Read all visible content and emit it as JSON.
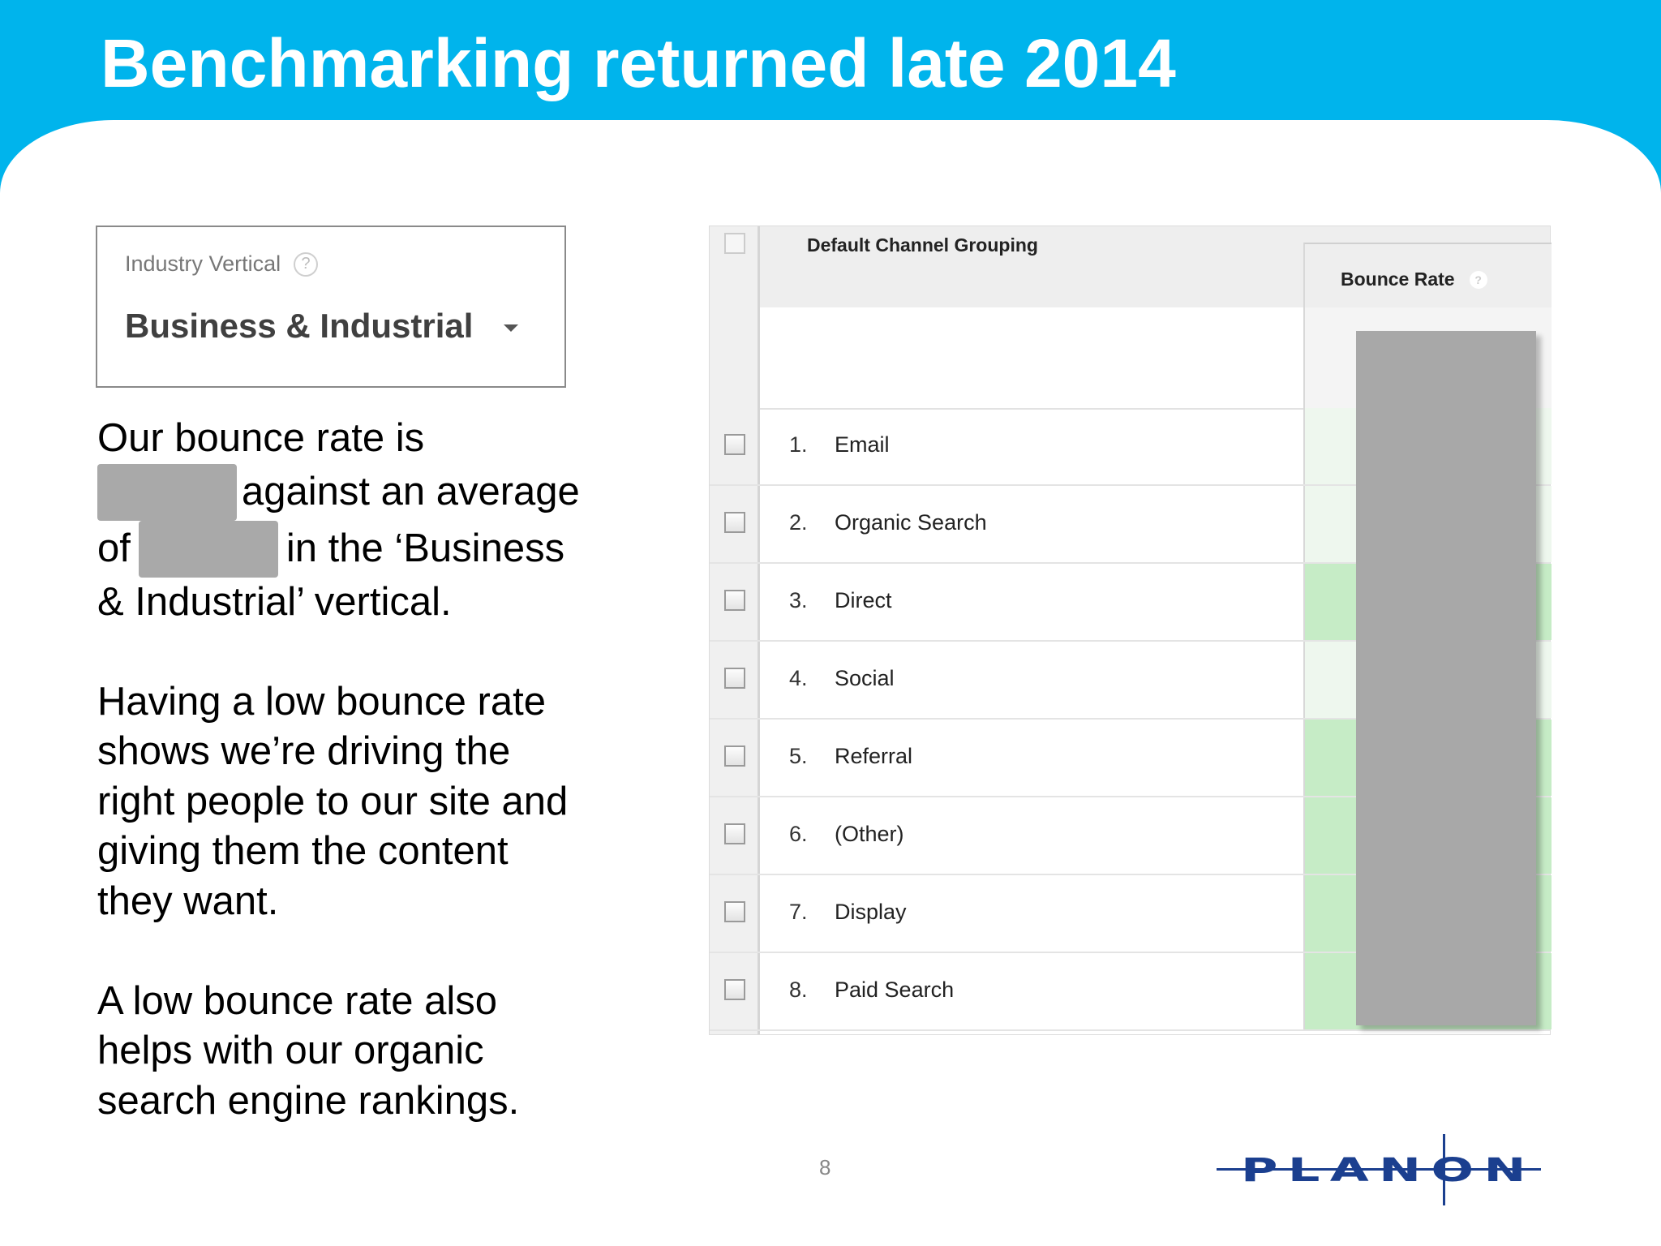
{
  "slide": {
    "title": "Benchmarking returned late 2014",
    "page_number": "8"
  },
  "industry": {
    "label": "Industry Vertical",
    "help": "?",
    "value": "Business & Industrial"
  },
  "body": {
    "p1_part1": "Our bounce rate is",
    "p1_part2": "against an average of",
    "p1_part3": "in the ‘Business & Industrial’ vertical.",
    "p2": "Having a low bounce rate shows we’re driving the right people to our site and giving them the content they want.",
    "p3": "A low bounce rate also helps with our organic search engine rankings."
  },
  "table": {
    "col_channel": "Default Channel Grouping",
    "col_bounce": "Bounce Rate",
    "bounce_help": "?",
    "rows": [
      {
        "num": "1.",
        "label": "Email",
        "bg": "#eef7ee"
      },
      {
        "num": "2.",
        "label": "Organic Search",
        "bg": "#eef7ee"
      },
      {
        "num": "3.",
        "label": "Direct",
        "bg": "#c6ecc6"
      },
      {
        "num": "4.",
        "label": "Social",
        "bg": "#eef7ee"
      },
      {
        "num": "5.",
        "label": "Referral",
        "bg": "#c6ecc6"
      },
      {
        "num": "6.",
        "label": "(Other)",
        "bg": "#c6ecc6"
      },
      {
        "num": "7.",
        "label": "Display",
        "bg": "#c6ecc6"
      },
      {
        "num": "8.",
        "label": "Paid Search",
        "bg": "#c6ecc6"
      }
    ]
  },
  "logo": {
    "text": "PLANON",
    "color": "#1b3f8f"
  },
  "colors": {
    "header": "#00b4ec",
    "redaction": "#a9a9a9"
  }
}
